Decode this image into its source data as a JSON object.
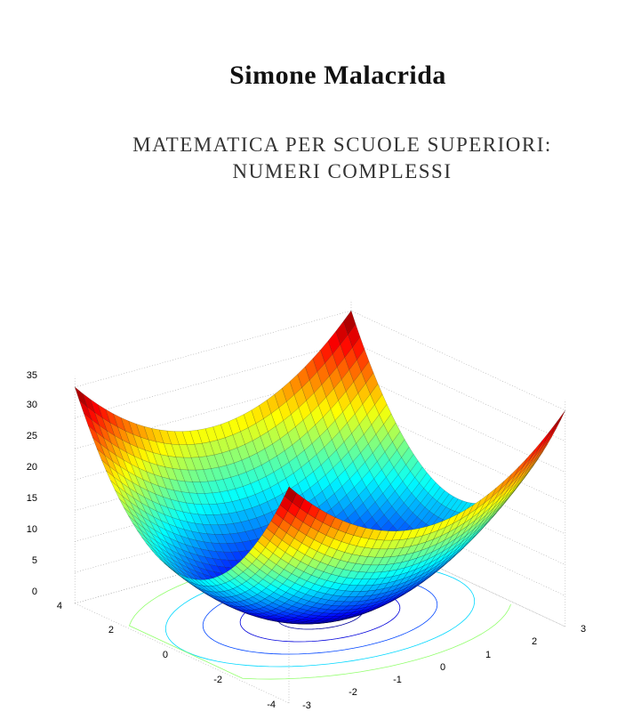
{
  "author": "Simone Malacrida",
  "title": [
    "MATEMATICA PER SCUOLE SUPERIORI:",
    "NUMERI COMPLESSI"
  ],
  "figure": {
    "z_ticks": [
      "35",
      "30",
      "25",
      "20",
      "15",
      "10",
      "5",
      "0"
    ],
    "y_ticks": [
      "4",
      "2",
      "0",
      "-2",
      "-4"
    ],
    "x_ticks": [
      "-3",
      "-2",
      "-1",
      "0",
      "1",
      "2",
      "3"
    ]
  }
}
